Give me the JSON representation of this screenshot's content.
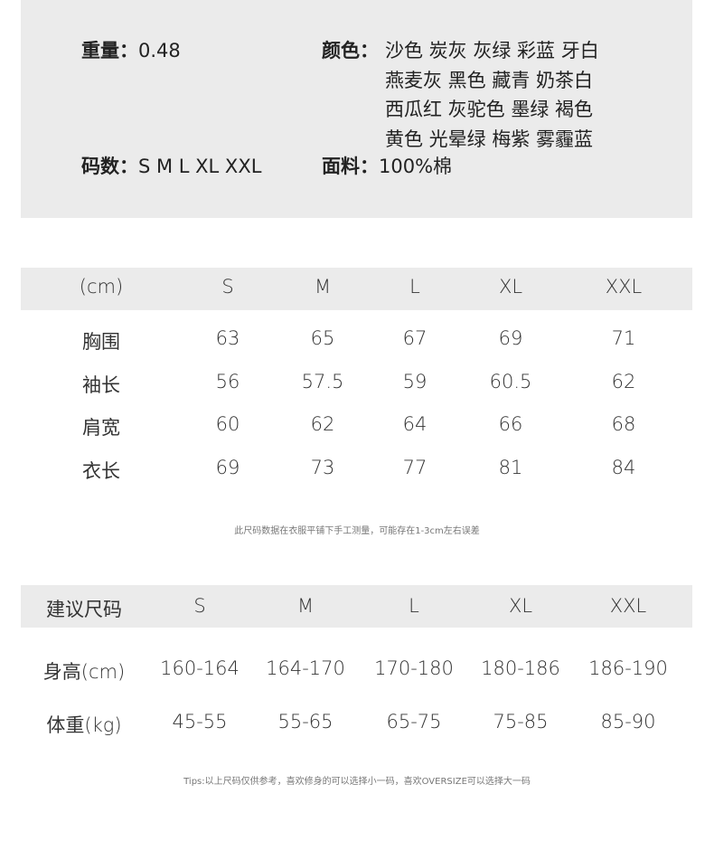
{
  "info": {
    "weight_label": "重量：",
    "weight": "0.48",
    "color_label": "颜色：",
    "colors": [
      "沙色 炭灰 灰绿 彩蓝 牙白",
      "燕麦灰 黑色 藏青 奶茶白",
      "西瓜红 灰驼色 墨绿 褐色",
      "黄色 光晕绿 梅紫 雾霾蓝"
    ],
    "size_label": "码数：",
    "sizes": "S M L XL XXL",
    "fabric_label": "面料：",
    "fabric": "100%棉"
  },
  "measure_table": {
    "headers": [
      "(cm)",
      "S",
      "M",
      "L",
      "XL",
      "XXL"
    ],
    "rows": [
      [
        "胸围",
        "63",
        "65",
        "67",
        "69",
        "71"
      ],
      [
        "袖长",
        "56",
        "57.5",
        "59",
        "60.5",
        "62"
      ],
      [
        "肩宽",
        "60",
        "62",
        "64",
        "66",
        "68"
      ],
      [
        "衣长",
        "69",
        "73",
        "77",
        "81",
        "84"
      ]
    ],
    "note": "此尺码数据在衣服平铺下手工测量，可能存在1-3cm左右误差"
  },
  "recommend_table": {
    "headers": [
      "建议尺码",
      "S",
      "M",
      "L",
      "XL",
      "XXL"
    ],
    "rows": [
      [
        "身高(cm)",
        "160-164",
        "164-170",
        "170-180",
        "180-186",
        "186-190"
      ],
      [
        "体重(kg)",
        "45-55",
        "55-65",
        "65-75",
        "75-85",
        "85-90"
      ]
    ],
    "note": "Tips:以上尺码仅供参考，喜欢修身的可以选择小一码，喜欢OVERSIZE可以选择大一码"
  }
}
